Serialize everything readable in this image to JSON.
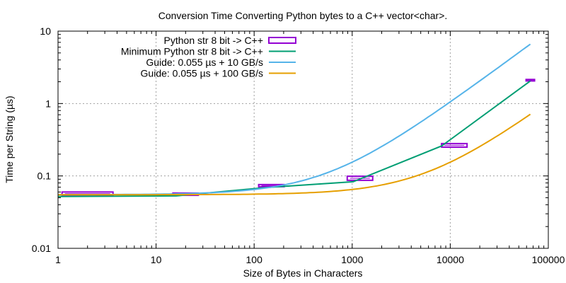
{
  "chart_data": {
    "type": "line",
    "title": "Conversion Time Converting Python bytes to a C++ vector<char>.",
    "xlabel": "Size of Bytes in Characters",
    "ylabel": "Time per String (µs)",
    "x_scale": "log",
    "y_scale": "log",
    "xlim": [
      1,
      100000
    ],
    "ylim": [
      0.01,
      10
    ],
    "x_ticks": [
      1,
      10,
      100,
      1000,
      10000,
      100000
    ],
    "x_tick_labels": [
      "1",
      "10",
      "100",
      "1000",
      "10000",
      "100000"
    ],
    "y_ticks": [
      0.01,
      0.1,
      1,
      10
    ],
    "y_tick_labels": [
      "0.01",
      "0.1",
      "1",
      "10"
    ],
    "grid": true,
    "legend_position": "top-right",
    "series": [
      {
        "name": "Python str 8 bit -> C++",
        "style": "box",
        "color": "#9400d3",
        "points": [
          {
            "x": 2,
            "ymin": 0.054,
            "ymax": 0.06
          },
          {
            "x": 20,
            "ymin": 0.054,
            "ymax": 0.058
          },
          {
            "x": 150,
            "ymin": 0.071,
            "ymax": 0.076
          },
          {
            "x": 1200,
            "ymin": 0.087,
            "ymax": 0.099
          },
          {
            "x": 11000,
            "ymin": 0.25,
            "ymax": 0.28
          },
          {
            "x": 65536,
            "ymin": 2.05,
            "ymax": 2.15
          }
        ]
      },
      {
        "name": "Minimum Python str 8 bit -> C++",
        "style": "line",
        "color": "#009e73",
        "x": [
          1,
          16,
          128,
          1024,
          8192,
          65536
        ],
        "y": [
          0.052,
          0.053,
          0.069,
          0.083,
          0.26,
          2.05
        ]
      },
      {
        "name": "Guide: 0.055 µs + 10 GB/s",
        "style": "line",
        "color": "#56b4e9",
        "formula": {
          "a": 0.055,
          "b": 0.0001
        },
        "x_range": [
          1,
          65536
        ]
      },
      {
        "name": "Guide: 0.055 µs + 100 GB/s",
        "style": "line",
        "color": "#e69f00",
        "formula": {
          "a": 0.055,
          "b": 1e-05
        },
        "x_range": [
          1,
          65536
        ]
      }
    ]
  }
}
